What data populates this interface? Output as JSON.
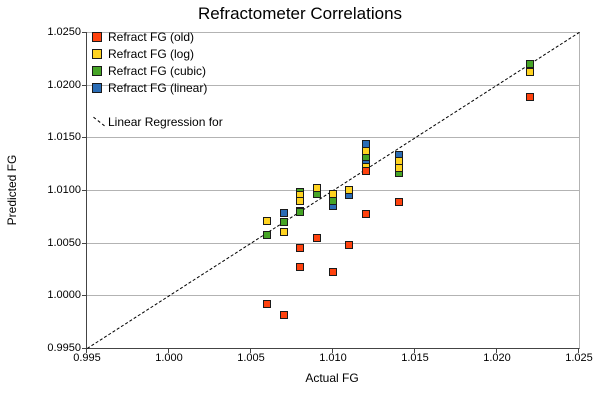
{
  "title": "Refractometer Correlations",
  "axes": {
    "x": {
      "label": "Actual FG",
      "min": 0.995,
      "max": 1.025,
      "tick_labels": [
        "0.995",
        "1.000",
        "1.005",
        "1.010",
        "1.015",
        "1.020",
        "1.025"
      ],
      "tick_values": [
        0.995,
        1.0,
        1.005,
        1.01,
        1.015,
        1.02,
        1.025
      ]
    },
    "y": {
      "label": "Predicted FG",
      "min": 0.995,
      "max": 1.025,
      "tick_labels": [
        "1.0250",
        "1.0200",
        "1.0150",
        "1.0100",
        "1.0050",
        "1.0000",
        "0.9950"
      ],
      "tick_values": [
        1.025,
        1.02,
        1.015,
        1.01,
        1.005,
        1.0,
        0.995
      ]
    }
  },
  "legend": {
    "items": [
      {
        "label": "Refract FG (old)",
        "color": "#ff420e"
      },
      {
        "label": "Refract FG (log)",
        "color": "#ffd320"
      },
      {
        "label": "Refract FG (cubic)",
        "color": "#46a426"
      },
      {
        "label": "Refract FG (linear)",
        "color": "#2a6cb5"
      }
    ],
    "regression_label": "Linear Regression for"
  },
  "colors": {
    "gridline": "#b3b3b3",
    "axis": "#444444",
    "marker_border": "#1a1a1a",
    "regression_line": "#000000",
    "background": "#ffffff"
  },
  "chart_data": {
    "type": "scatter",
    "title": "Refractometer Correlations",
    "xlabel": "Actual FG",
    "ylabel": "Predicted FG",
    "xlim": [
      0.995,
      1.025
    ],
    "ylim": [
      0.995,
      1.025
    ],
    "grid": true,
    "legend_position": "top-left-inside",
    "marker": "square",
    "series": [
      {
        "name": "Refract FG (old)",
        "color": "#ff420e",
        "z": 4,
        "points": [
          [
            1.006,
            0.9992
          ],
          [
            1.007,
            0.9981
          ],
          [
            1.008,
            1.0045
          ],
          [
            1.008,
            1.0027
          ],
          [
            1.009,
            1.0054
          ],
          [
            1.01,
            1.0022
          ],
          [
            1.011,
            1.0048
          ],
          [
            1.012,
            1.0118
          ],
          [
            1.012,
            1.0077
          ],
          [
            1.014,
            1.0089
          ],
          [
            1.022,
            1.0188
          ]
        ]
      },
      {
        "name": "Refract FG (log)",
        "color": "#ffd320",
        "z": 3,
        "points": [
          [
            1.006,
            1.0071
          ],
          [
            1.007,
            1.006
          ],
          [
            1.008,
            1.0095
          ],
          [
            1.008,
            1.009
          ],
          [
            1.009,
            1.0102
          ],
          [
            1.01,
            1.0096
          ],
          [
            1.011,
            1.01
          ],
          [
            1.012,
            1.0137
          ],
          [
            1.012,
            1.0122
          ],
          [
            1.014,
            1.0128
          ],
          [
            1.014,
            1.0121
          ],
          [
            1.022,
            1.0212
          ]
        ]
      },
      {
        "name": "Refract FG (cubic)",
        "color": "#46a426",
        "z": 2,
        "points": [
          [
            1.006,
            1.0057
          ],
          [
            1.007,
            1.007
          ],
          [
            1.008,
            1.0098
          ],
          [
            1.008,
            1.0079
          ],
          [
            1.009,
            1.0096
          ],
          [
            1.01,
            1.009
          ],
          [
            1.012,
            1.0131
          ],
          [
            1.014,
            1.0116
          ],
          [
            1.022,
            1.022
          ]
        ]
      },
      {
        "name": "Refract FG (linear)",
        "color": "#2a6cb5",
        "z": 1,
        "points": [
          [
            1.007,
            1.0078
          ],
          [
            1.008,
            1.008
          ],
          [
            1.01,
            1.0085
          ],
          [
            1.011,
            1.0095
          ],
          [
            1.012,
            1.0144
          ],
          [
            1.012,
            1.0127
          ],
          [
            1.014,
            1.0133
          ]
        ]
      }
    ],
    "regression_line": {
      "label": "Linear Regression for",
      "style": "dashed",
      "color": "#000000",
      "from": [
        0.995,
        0.995
      ],
      "to": [
        1.025,
        1.025
      ]
    }
  }
}
